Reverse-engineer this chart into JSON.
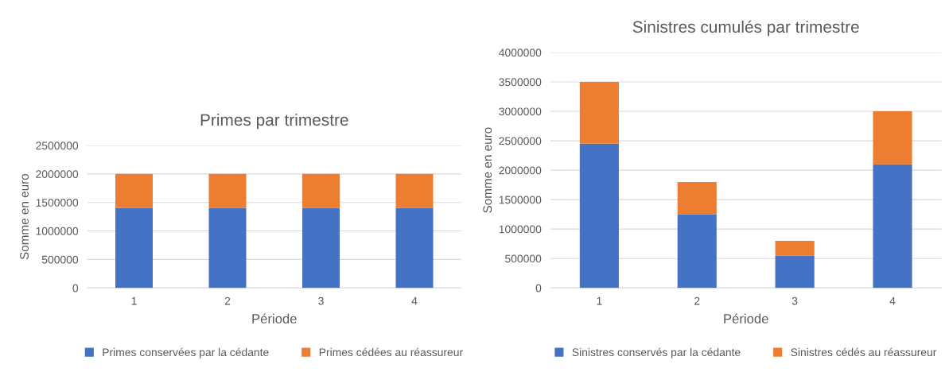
{
  "chart_data": [
    {
      "type": "bar",
      "title": "Primes par trimestre",
      "xlabel": "Période",
      "ylabel": "Somme en euro",
      "categories": [
        "1",
        "2",
        "3",
        "4"
      ],
      "stacked": true,
      "ylim": [
        0,
        2500000
      ],
      "yticks": [
        0,
        500000,
        1000000,
        1500000,
        2000000,
        2500000
      ],
      "grid": "y",
      "legend": "bottom",
      "series": [
        {
          "name": "Primes conservées par la cédante",
          "color": "#4472c4",
          "values": [
            1400000,
            1400000,
            1400000,
            1400000
          ]
        },
        {
          "name": "Primes cédées au réassureur",
          "color": "#ed7d31",
          "values": [
            600000,
            600000,
            600000,
            600000
          ]
        }
      ]
    },
    {
      "type": "bar",
      "title": "Sinistres cumulés par trimestre",
      "xlabel": "Période",
      "ylabel": "Somme en euro",
      "categories": [
        "1",
        "2",
        "3",
        "4"
      ],
      "stacked": true,
      "ylim": [
        0,
        4000000
      ],
      "yticks": [
        0,
        500000,
        1000000,
        1500000,
        2000000,
        2500000,
        3000000,
        3500000,
        4000000
      ],
      "grid": "y",
      "legend": "bottom",
      "series": [
        {
          "name": "Sinistres conservés par la cédante",
          "color": "#4472c4",
          "values": [
            2450000,
            1250000,
            550000,
            2100000
          ]
        },
        {
          "name": "Sinistres cédés au réassureur",
          "color": "#ed7d31",
          "values": [
            1050000,
            550000,
            250000,
            900000
          ]
        }
      ]
    }
  ]
}
